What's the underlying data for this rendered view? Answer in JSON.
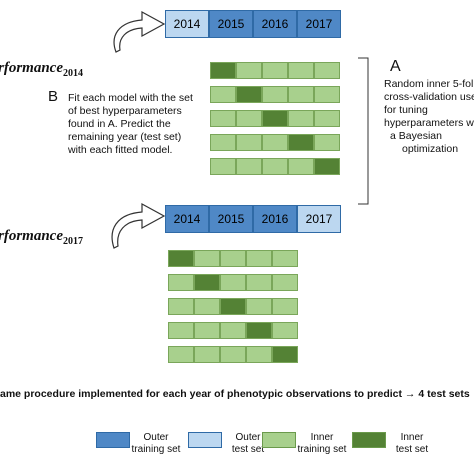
{
  "colors": {
    "outer_training": "#4f88c6",
    "outer_test": "#bcd7f0",
    "inner_training": "#a8d08d",
    "inner_test": "#548235",
    "cell_border": "#7aa65a"
  },
  "panel_top": {
    "years": [
      {
        "label": "2014",
        "role": "outer_test"
      },
      {
        "label": "2015",
        "role": "outer_training"
      },
      {
        "label": "2016",
        "role": "outer_training"
      },
      {
        "label": "2017",
        "role": "outer_training"
      }
    ],
    "performance_text": "rformance",
    "performance_sub": "2014",
    "cv_test_index": [
      0,
      1,
      2,
      3,
      4
    ],
    "label_a": "A",
    "label_b": "B",
    "text_a": [
      "Random inner 5-fol",
      "cross-validation use",
      "for tuning",
      "hyperparameters w",
      "a  Bayesian",
      "optimization"
    ],
    "text_b": [
      "Fit each model with the set",
      "of best hyperparameters",
      "found in A. Predict the",
      "remaining year (test set)",
      "with each fitted model."
    ]
  },
  "panel_bottom": {
    "years": [
      {
        "label": "2014",
        "role": "outer_training"
      },
      {
        "label": "2015",
        "role": "outer_training"
      },
      {
        "label": "2016",
        "role": "outer_training"
      },
      {
        "label": "2017",
        "role": "outer_test"
      }
    ],
    "performance_text": "rformance",
    "performance_sub": "2017",
    "cv_test_index": [
      0,
      1,
      2,
      3,
      4
    ]
  },
  "footer_text": "ame procedure implemented for each year of phenotypic observations to predict → 4 test sets",
  "legend": [
    {
      "line1": "Outer",
      "line2": "training set",
      "role": "outer_training"
    },
    {
      "line1": "Outer",
      "line2": "test set",
      "role": "outer_test"
    },
    {
      "line1": "Inner",
      "line2": "training set",
      "role": "inner_training"
    },
    {
      "line1": "Inner",
      "line2": "test set",
      "role": "inner_test"
    }
  ]
}
